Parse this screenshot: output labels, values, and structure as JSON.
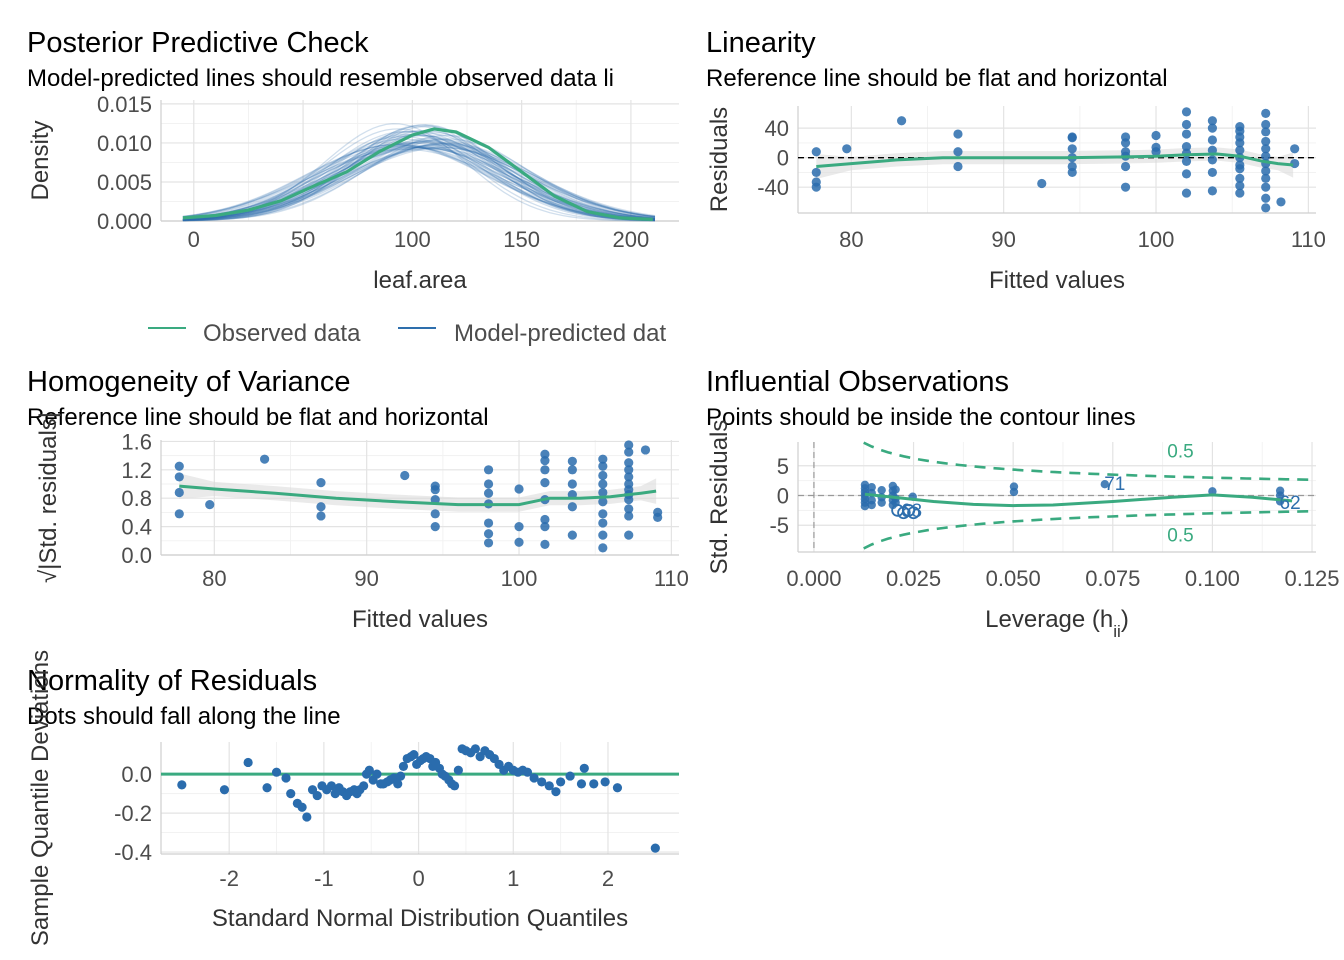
{
  "colors": {
    "observed": "#3aaa80",
    "predicted": "#2e6fad",
    "points": "#2a6cad",
    "reference": "#3aaa80",
    "band": "#d8d8d8",
    "contour": "#3aaa80"
  },
  "chart_data": [
    {
      "id": "ppc",
      "type": "line",
      "title": "Posterior Predictive Check",
      "subtitle": "Model-predicted lines should resemble observed data li",
      "xlabel": "leaf.area",
      "ylabel": "Density",
      "xlim": [
        -15,
        222
      ],
      "ylim": [
        0,
        0.0155
      ],
      "xticks": [
        "0",
        "50",
        "100",
        "150",
        "200"
      ],
      "yticks": [
        "0.000",
        "0.005",
        "0.010",
        "0.015"
      ],
      "xtick_values": [
        0,
        50,
        100,
        150,
        200
      ],
      "ytick_values": [
        0,
        0.005,
        0.01,
        0.015
      ],
      "legend": [
        "Observed data",
        "Model-predicted dat"
      ],
      "legend_position": "bottom",
      "observed": {
        "name": "Observed data",
        "x": [
          -5,
          10,
          25,
          40,
          55,
          70,
          85,
          100,
          110,
          120,
          135,
          150,
          165,
          180,
          195,
          210
        ],
        "y": [
          0.0004,
          0.0007,
          0.0014,
          0.0026,
          0.0045,
          0.0063,
          0.0089,
          0.011,
          0.0118,
          0.0114,
          0.0094,
          0.0063,
          0.0032,
          0.0012,
          0.0004,
          0.0002
        ]
      },
      "predicted_curve_count": 50,
      "predicted_mean_range": [
        92,
        116
      ],
      "predicted_sd_range": [
        32,
        44
      ]
    },
    {
      "id": "linearity",
      "type": "scatter",
      "title": "Linearity",
      "subtitle": "Reference line should be flat and horizontal",
      "xlabel": "Fitted values",
      "ylabel": "Residuals",
      "xlim": [
        76.5,
        110.5
      ],
      "ylim": [
        -75,
        70
      ],
      "xticks": [
        "80",
        "90",
        "100",
        "110"
      ],
      "yticks": [
        "-40",
        "0",
        "40"
      ],
      "xtick_values": [
        80,
        90,
        100,
        110
      ],
      "ytick_values": [
        -40,
        0,
        40
      ],
      "points": [
        [
          77.7,
          8
        ],
        [
          77.7,
          -20
        ],
        [
          77.7,
          -33
        ],
        [
          77.7,
          -40
        ],
        [
          79.7,
          12
        ],
        [
          83.3,
          50
        ],
        [
          87,
          32
        ],
        [
          87,
          8
        ],
        [
          87,
          -12
        ],
        [
          92.5,
          -35
        ],
        [
          94.5,
          28
        ],
        [
          94.5,
          27
        ],
        [
          94.5,
          12
        ],
        [
          94.5,
          0
        ],
        [
          94.5,
          -12
        ],
        [
          94.5,
          -20
        ],
        [
          98,
          28
        ],
        [
          98,
          20
        ],
        [
          98,
          8
        ],
        [
          98,
          2
        ],
        [
          98,
          -12
        ],
        [
          98,
          -40
        ],
        [
          100,
          30
        ],
        [
          100,
          14
        ],
        [
          100,
          8
        ],
        [
          102,
          62
        ],
        [
          102,
          45
        ],
        [
          102,
          32
        ],
        [
          102,
          15
        ],
        [
          102,
          6
        ],
        [
          102,
          -5
        ],
        [
          102,
          -22
        ],
        [
          102,
          -48
        ],
        [
          103.7,
          50
        ],
        [
          103.7,
          40
        ],
        [
          103.7,
          24
        ],
        [
          103.7,
          10
        ],
        [
          103.7,
          -3
        ],
        [
          103.7,
          -20
        ],
        [
          103.7,
          -45
        ],
        [
          105.5,
          42
        ],
        [
          105.5,
          36
        ],
        [
          105.5,
          28
        ],
        [
          105.5,
          20
        ],
        [
          105.5,
          10
        ],
        [
          105.5,
          0
        ],
        [
          105.5,
          -10
        ],
        [
          105.5,
          -15
        ],
        [
          105.5,
          -28
        ],
        [
          105.5,
          -38
        ],
        [
          105.5,
          -48
        ],
        [
          107.2,
          60
        ],
        [
          107.2,
          45
        ],
        [
          107.2,
          35
        ],
        [
          107.2,
          22
        ],
        [
          107.2,
          12
        ],
        [
          107.2,
          2
        ],
        [
          107.2,
          -8
        ],
        [
          107.2,
          -18
        ],
        [
          107.2,
          -28
        ],
        [
          107.2,
          -40
        ],
        [
          107.2,
          -55
        ],
        [
          107.2,
          -68
        ],
        [
          108.2,
          -60
        ],
        [
          109.1,
          12
        ],
        [
          109.1,
          -8
        ]
      ],
      "loess": {
        "x": [
          77.7,
          80,
          83,
          86,
          90,
          94,
          98,
          100,
          102,
          104,
          105.5,
          107,
          108,
          109
        ],
        "y": [
          -12,
          -8,
          -3,
          0,
          0,
          0,
          1,
          2,
          4,
          5,
          2,
          -5,
          -8,
          -10
        ]
      },
      "reference_line": 0
    },
    {
      "id": "homogeneity",
      "type": "scatter",
      "title": "Homogeneity of Variance",
      "subtitle": "Reference line should be flat and horizontal",
      "xlabel": "Fitted values",
      "ylabel": "√|Std. residuals|",
      "xlim": [
        76.5,
        110.5
      ],
      "ylim": [
        0,
        1.62
      ],
      "xticks": [
        "80",
        "90",
        "100",
        "110"
      ],
      "yticks": [
        "0.0",
        "0.4",
        "0.8",
        "1.2",
        "1.6"
      ],
      "xtick_values": [
        80,
        90,
        100,
        110
      ],
      "ytick_values": [
        0,
        0.4,
        0.8,
        1.2,
        1.6
      ],
      "points": [
        [
          77.7,
          1.25
        ],
        [
          77.7,
          1.1
        ],
        [
          77.7,
          0.88
        ],
        [
          77.7,
          0.58
        ],
        [
          79.7,
          0.71
        ],
        [
          83.3,
          1.35
        ],
        [
          87,
          1.02
        ],
        [
          87,
          0.68
        ],
        [
          87,
          0.55
        ],
        [
          92.5,
          1.12
        ],
        [
          94.5,
          0.97
        ],
        [
          94.5,
          0.92
        ],
        [
          94.5,
          0.78
        ],
        [
          94.5,
          0.58
        ],
        [
          94.5,
          0.4
        ],
        [
          98,
          1.2
        ],
        [
          98,
          1.0
        ],
        [
          98,
          0.87
        ],
        [
          98,
          0.72
        ],
        [
          98,
          0.45
        ],
        [
          98,
          0.3
        ],
        [
          98,
          0.17
        ],
        [
          100,
          0.93
        ],
        [
          100,
          0.4
        ],
        [
          100,
          0.18
        ],
        [
          101.7,
          1.42
        ],
        [
          101.7,
          1.33
        ],
        [
          101.7,
          1.2
        ],
        [
          101.7,
          1.02
        ],
        [
          101.7,
          0.78
        ],
        [
          101.7,
          0.5
        ],
        [
          101.7,
          0.4
        ],
        [
          101.7,
          0.15
        ],
        [
          103.5,
          1.32
        ],
        [
          103.5,
          1.2
        ],
        [
          103.5,
          1.0
        ],
        [
          103.5,
          0.85
        ],
        [
          103.5,
          0.68
        ],
        [
          103.5,
          0.28
        ],
        [
          105.5,
          1.35
        ],
        [
          105.5,
          1.25
        ],
        [
          105.5,
          1.12
        ],
        [
          105.5,
          1.0
        ],
        [
          105.5,
          0.88
        ],
        [
          105.5,
          0.75
        ],
        [
          105.5,
          0.58
        ],
        [
          105.5,
          0.45
        ],
        [
          105.5,
          0.28
        ],
        [
          105.5,
          0.1
        ],
        [
          107.2,
          1.55
        ],
        [
          107.2,
          1.45
        ],
        [
          107.2,
          1.3
        ],
        [
          107.2,
          1.2
        ],
        [
          107.2,
          1.1
        ],
        [
          107.2,
          1.0
        ],
        [
          107.2,
          0.92
        ],
        [
          107.2,
          0.85
        ],
        [
          107.2,
          0.78
        ],
        [
          107.2,
          0.65
        ],
        [
          107.2,
          0.55
        ],
        [
          107.2,
          0.28
        ],
        [
          108.3,
          1.48
        ],
        [
          109.1,
          0.6
        ],
        [
          109.1,
          0.53
        ]
      ],
      "loess": {
        "x": [
          77.7,
          80,
          84,
          88,
          92,
          96,
          100,
          102,
          104,
          106,
          108,
          109
        ],
        "y": [
          0.97,
          0.93,
          0.87,
          0.8,
          0.75,
          0.71,
          0.71,
          0.8,
          0.8,
          0.82,
          0.87,
          0.9
        ]
      }
    },
    {
      "id": "influential",
      "type": "scatter",
      "title": "Influential Observations",
      "subtitle": "Points should be inside the contour lines",
      "xlabel": "Leverage (h",
      "xlabel_sub": "ii",
      "xlabel_close": ")",
      "ylabel": "Std. Residuals",
      "xlim": [
        -0.004,
        0.126
      ],
      "ylim": [
        -9.5,
        9
      ],
      "xticks": [
        "0.000",
        "0.025",
        "0.050",
        "0.075",
        "0.100",
        "0.125"
      ],
      "yticks": [
        "-5",
        "0",
        "5"
      ],
      "xtick_values": [
        0,
        0.025,
        0.05,
        0.075,
        0.1,
        0.125
      ],
      "ytick_values": [
        -5,
        0,
        5
      ],
      "contour_labels": [
        "0.5",
        "0.5"
      ],
      "point_labels": [
        "71",
        "68",
        "62"
      ],
      "points": [
        [
          0.0128,
          1.8
        ],
        [
          0.0128,
          1.2
        ],
        [
          0.0128,
          0.6
        ],
        [
          0.0128,
          0
        ],
        [
          0.0128,
          -0.6
        ],
        [
          0.0128,
          -1.2
        ],
        [
          0.0128,
          -1.8
        ],
        [
          0.0145,
          1.4
        ],
        [
          0.0145,
          0.4
        ],
        [
          0.0145,
          -0.8
        ],
        [
          0.0145,
          -1.6
        ],
        [
          0.017,
          0.9
        ],
        [
          0.017,
          -0.3
        ],
        [
          0.017,
          -1.2
        ],
        [
          0.0198,
          1.6
        ],
        [
          0.0198,
          0.8
        ],
        [
          0.0198,
          0
        ],
        [
          0.0198,
          -0.8
        ],
        [
          0.0198,
          -1.6
        ],
        [
          0.0205,
          1.0
        ],
        [
          0.0205,
          -0.5
        ],
        [
          0.0205,
          -1.2
        ],
        [
          0.0248,
          -0.2
        ],
        [
          0.0502,
          1.5
        ],
        [
          0.0502,
          0.6
        ],
        [
          0.073,
          1.9
        ],
        [
          0.1,
          0.7
        ],
        [
          0.117,
          0.8
        ],
        [
          0.117,
          0
        ],
        [
          0.117,
          -1.0
        ]
      ],
      "open_points": [
        [
          0.021,
          -2.5
        ],
        [
          0.0225,
          -2.9
        ],
        [
          0.0238,
          -2.5
        ],
        [
          0.025,
          -2.9
        ]
      ],
      "loess": {
        "x": [
          0.0128,
          0.02,
          0.03,
          0.04,
          0.05,
          0.06,
          0.075,
          0.09,
          0.1,
          0.11,
          0.12
        ],
        "y": [
          0.2,
          -0.3,
          -1.0,
          -1.5,
          -1.7,
          -1.6,
          -1.0,
          -0.3,
          0.1,
          -0.3,
          -0.9
        ]
      }
    },
    {
      "id": "normality",
      "type": "scatter",
      "title": "Normality of Residuals",
      "subtitle": "Dots should fall along the line",
      "xlabel": "Standard Normal Distribution Quantiles",
      "ylabel": "Sample Quantile Deviations",
      "xlim": [
        -2.72,
        2.75
      ],
      "ylim": [
        -0.41,
        0.165
      ],
      "xticks": [
        "-2",
        "-1",
        "0",
        "1",
        "2"
      ],
      "yticks": [
        "-0.4",
        "-0.2",
        "0.0"
      ],
      "xtick_values": [
        -2,
        -1,
        0,
        1,
        2
      ],
      "ytick_values": [
        -0.4,
        -0.2,
        0
      ],
      "reference_line": 0,
      "points": [
        [
          -2.5,
          -0.055
        ],
        [
          -2.05,
          -0.08
        ],
        [
          -1.8,
          0.06
        ],
        [
          -1.6,
          -0.07
        ],
        [
          -1.5,
          0.01
        ],
        [
          -1.4,
          -0.02
        ],
        [
          -1.35,
          -0.1
        ],
        [
          -1.28,
          -0.15
        ],
        [
          -1.23,
          -0.17
        ],
        [
          -1.18,
          -0.22
        ],
        [
          -1.12,
          -0.08
        ],
        [
          -1.07,
          -0.11
        ],
        [
          -1.02,
          -0.06
        ],
        [
          -0.97,
          -0.08
        ],
        [
          -0.92,
          -0.06
        ],
        [
          -0.88,
          -0.1
        ],
        [
          -0.84,
          -0.07
        ],
        [
          -0.8,
          -0.09
        ],
        [
          -0.76,
          -0.11
        ],
        [
          -0.72,
          -0.09
        ],
        [
          -0.68,
          -0.08
        ],
        [
          -0.65,
          -0.1
        ],
        [
          -0.62,
          -0.08
        ],
        [
          -0.58,
          -0.06
        ],
        [
          -0.55,
          0.0
        ],
        [
          -0.52,
          0.02
        ],
        [
          -0.48,
          -0.03
        ],
        [
          -0.44,
          0.0
        ],
        [
          -0.4,
          -0.05
        ],
        [
          -0.37,
          -0.05
        ],
        [
          -0.33,
          -0.04
        ],
        [
          -0.3,
          -0.03
        ],
        [
          -0.26,
          -0.02
        ],
        [
          -0.22,
          -0.05
        ],
        [
          -0.19,
          -0.01
        ],
        [
          -0.16,
          0.04
        ],
        [
          -0.12,
          0.08
        ],
        [
          -0.08,
          0.09
        ],
        [
          -0.05,
          0.1
        ],
        [
          -0.02,
          0.05
        ],
        [
          0.02,
          0.07
        ],
        [
          0.05,
          0.08
        ],
        [
          0.08,
          0.09
        ],
        [
          0.12,
          0.08
        ],
        [
          0.15,
          0.04
        ],
        [
          0.18,
          0.06
        ],
        [
          0.22,
          0.03
        ],
        [
          0.25,
          0.0
        ],
        [
          0.28,
          -0.01
        ],
        [
          0.32,
          -0.03
        ],
        [
          0.35,
          -0.05
        ],
        [
          0.38,
          -0.06
        ],
        [
          0.42,
          0.02
        ],
        [
          0.46,
          0.13
        ],
        [
          0.5,
          0.12
        ],
        [
          0.55,
          0.11
        ],
        [
          0.6,
          0.13
        ],
        [
          0.65,
          0.09
        ],
        [
          0.7,
          0.12
        ],
        [
          0.75,
          0.1
        ],
        [
          0.8,
          0.08
        ],
        [
          0.85,
          0.05
        ],
        [
          0.9,
          0.02
        ],
        [
          0.95,
          0.04
        ],
        [
          1.0,
          0.02
        ],
        [
          1.05,
          0.01
        ],
        [
          1.1,
          0.02
        ],
        [
          1.15,
          0.01
        ],
        [
          1.22,
          -0.02
        ],
        [
          1.3,
          -0.04
        ],
        [
          1.38,
          -0.06
        ],
        [
          1.45,
          -0.09
        ],
        [
          1.5,
          -0.04
        ],
        [
          1.6,
          -0.01
        ],
        [
          1.72,
          -0.05
        ],
        [
          1.75,
          0.03
        ],
        [
          1.85,
          -0.05
        ],
        [
          1.97,
          -0.04
        ],
        [
          2.1,
          -0.07
        ],
        [
          2.5,
          -0.38
        ]
      ]
    }
  ]
}
